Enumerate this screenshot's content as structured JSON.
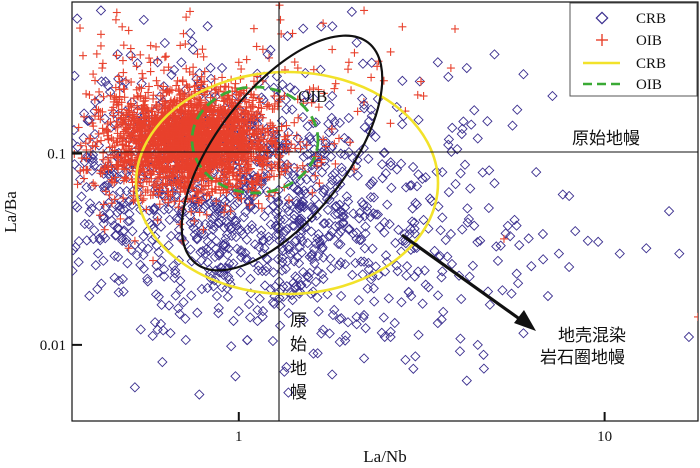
{
  "chart_data": {
    "type": "scatter",
    "xlabel": "La/Nb",
    "ylabel": "La/Ba",
    "x_scale": "log",
    "y_scale": "log",
    "xlim": [
      0.35,
      18
    ],
    "ylim": [
      0.004,
      0.62
    ],
    "x_ticks": [
      {
        "value": 1,
        "label": "1"
      },
      {
        "value": 10,
        "label": "10"
      }
    ],
    "y_ticks": [
      {
        "value": 0.01,
        "label": "0.01"
      },
      {
        "value": 0.1,
        "label": "0.1"
      }
    ],
    "legend": {
      "position": "top-right",
      "items": [
        {
          "label": "CRB",
          "symbol": "diamond",
          "color": "#3b2f8f"
        },
        {
          "label": "OIB",
          "symbol": "plus",
          "color": "#e8412c"
        },
        {
          "label": "CRB",
          "symbol": "line-solid",
          "color": "#f2e22a"
        },
        {
          "label": "OIB",
          "symbol": "line-dashed",
          "color": "#3aaa35"
        }
      ]
    },
    "series": [
      {
        "name": "CRB",
        "marker": "diamond",
        "color": "#3b2f8f",
        "points": [
          [
            0.42,
            0.56
          ],
          [
            0.55,
            0.5
          ],
          [
            0.6,
            0.3
          ],
          [
            0.75,
            0.35
          ],
          [
            0.9,
            0.28
          ],
          [
            1.2,
            0.33
          ],
          [
            1.5,
            0.45
          ],
          [
            2.1,
            0.38
          ],
          [
            2.8,
            0.24
          ],
          [
            3.5,
            0.3
          ],
          [
            4.2,
            0.28
          ],
          [
            5,
            0.33
          ],
          [
            6,
            0.26
          ],
          [
            7.2,
            0.2
          ],
          [
            2.2,
            0.18
          ],
          [
            3.1,
            0.15
          ],
          [
            4.5,
            0.12
          ],
          [
            5.6,
            0.14
          ],
          [
            1.4,
            0.17
          ],
          [
            1.8,
            0.2
          ],
          [
            0.7,
            0.05
          ],
          [
            0.85,
            0.04
          ],
          [
            1.1,
            0.06
          ],
          [
            1.3,
            0.045
          ],
          [
            1.6,
            0.052
          ],
          [
            2.0,
            0.04
          ],
          [
            2.4,
            0.048
          ],
          [
            2.8,
            0.035
          ],
          [
            3.2,
            0.045
          ],
          [
            3.8,
            0.038
          ],
          [
            4.4,
            0.042
          ],
          [
            5.2,
            0.033
          ],
          [
            6.2,
            0.036
          ],
          [
            7.5,
            0.03
          ],
          [
            9,
            0.035
          ],
          [
            11,
            0.03
          ],
          [
            13,
            0.032
          ],
          [
            1.2,
            0.028
          ],
          [
            1.5,
            0.024
          ],
          [
            1.9,
            0.027
          ],
          [
            2.3,
            0.022
          ],
          [
            2.7,
            0.026
          ],
          [
            3.3,
            0.02
          ],
          [
            4.0,
            0.023
          ],
          [
            4.8,
            0.019
          ],
          [
            5.8,
            0.021
          ],
          [
            7,
            0.018
          ],
          [
            0.9,
            0.02
          ],
          [
            1.0,
            0.015
          ],
          [
            1.3,
            0.016
          ],
          [
            1.7,
            0.012
          ],
          [
            2.1,
            0.014
          ],
          [
            2.6,
            0.011
          ],
          [
            3.5,
            0.013
          ],
          [
            4.5,
            0.01
          ],
          [
            6,
            0.0115
          ],
          [
            1.6,
            0.009
          ],
          [
            2.2,
            0.0085
          ],
          [
            3.0,
            0.0075
          ],
          [
            0.6,
            0.012
          ],
          [
            0.55,
            0.025
          ],
          [
            0.48,
            0.035
          ],
          [
            0.52,
            0.006
          ],
          [
            0.78,
            0.0055
          ],
          [
            1.8,
            0.007
          ],
          [
            4.2,
            0.0065
          ],
          [
            16,
            0.03
          ],
          [
            15,
            0.05
          ],
          [
            17,
            0.011
          ],
          [
            8,
            0.06
          ],
          [
            6.5,
            0.08
          ],
          [
            5,
            0.07
          ],
          [
            3.6,
            0.08
          ],
          [
            2.6,
            0.09
          ],
          [
            1.9,
            0.1
          ],
          [
            1.45,
            0.12
          ]
        ]
      },
      {
        "name": "OIB",
        "marker": "plus",
        "color": "#e8412c",
        "points": [
          [
            0.42,
            0.42
          ],
          [
            0.48,
            0.46
          ],
          [
            0.5,
            0.44
          ],
          [
            0.37,
            0.11
          ],
          [
            0.39,
            0.12
          ],
          [
            0.41,
            0.115
          ],
          [
            0.44,
            0.13
          ],
          [
            0.4,
            0.07
          ],
          [
            0.45,
            0.055
          ],
          [
            0.43,
            0.04
          ],
          [
            0.5,
            0.032
          ],
          [
            0.52,
            0.035
          ],
          [
            0.46,
            0.075
          ],
          [
            0.62,
            0.2
          ],
          [
            0.68,
            0.24
          ],
          [
            0.75,
            0.26
          ],
          [
            0.82,
            0.22
          ],
          [
            0.9,
            0.25
          ],
          [
            1.0,
            0.3
          ],
          [
            1.05,
            0.22
          ],
          [
            1.15,
            0.16
          ],
          [
            1.25,
            0.2
          ],
          [
            1.35,
            0.14
          ],
          [
            1.45,
            0.28
          ],
          [
            1.6,
            0.22
          ],
          [
            1.8,
            0.35
          ],
          [
            2.0,
            0.3
          ],
          [
            2.3,
            0.25
          ],
          [
            2.6,
            0.34
          ],
          [
            3.2,
            0.2
          ],
          [
            3.8,
            0.28
          ],
          [
            1.1,
            0.45
          ],
          [
            1.3,
            0.5
          ],
          [
            1.7,
            0.48
          ],
          [
            2.2,
            0.56
          ],
          [
            2.8,
            0.46
          ],
          [
            0.55,
            0.17
          ],
          [
            0.58,
            0.09
          ],
          [
            0.65,
            0.06
          ],
          [
            0.6,
            0.045
          ],
          [
            0.7,
            0.035
          ],
          [
            0.8,
            0.04
          ],
          [
            0.95,
            0.05
          ],
          [
            1.1,
            0.06
          ],
          [
            1.2,
            0.075
          ],
          [
            18,
            0.014
          ]
        ]
      }
    ],
    "regions": [
      {
        "name": "CRB",
        "style": "solid",
        "color": "#f2e22a"
      },
      {
        "name": "OIB",
        "style": "dashed",
        "color": "#3aaa35"
      },
      {
        "name": "OIB",
        "style": "solid",
        "color": "#111111",
        "label": "OIB"
      }
    ],
    "reference_lines": [
      {
        "axis": "y",
        "value": 0.1,
        "label": "原始地幔"
      },
      {
        "axis": "x",
        "value": 0.95,
        "label": "原始地幔"
      }
    ],
    "annotations": [
      {
        "text": "地壳混染",
        "line": 1
      },
      {
        "text": "岩石圈地幔",
        "line": 2
      }
    ]
  },
  "labels": {
    "hline_label": "原始地幔",
    "vline_label_chars": [
      "原",
      "始",
      "地",
      "幔"
    ],
    "oib_region_label": "OIB",
    "arrow_text_1": "地壳混染",
    "arrow_text_2": "岩石圈地幔"
  }
}
